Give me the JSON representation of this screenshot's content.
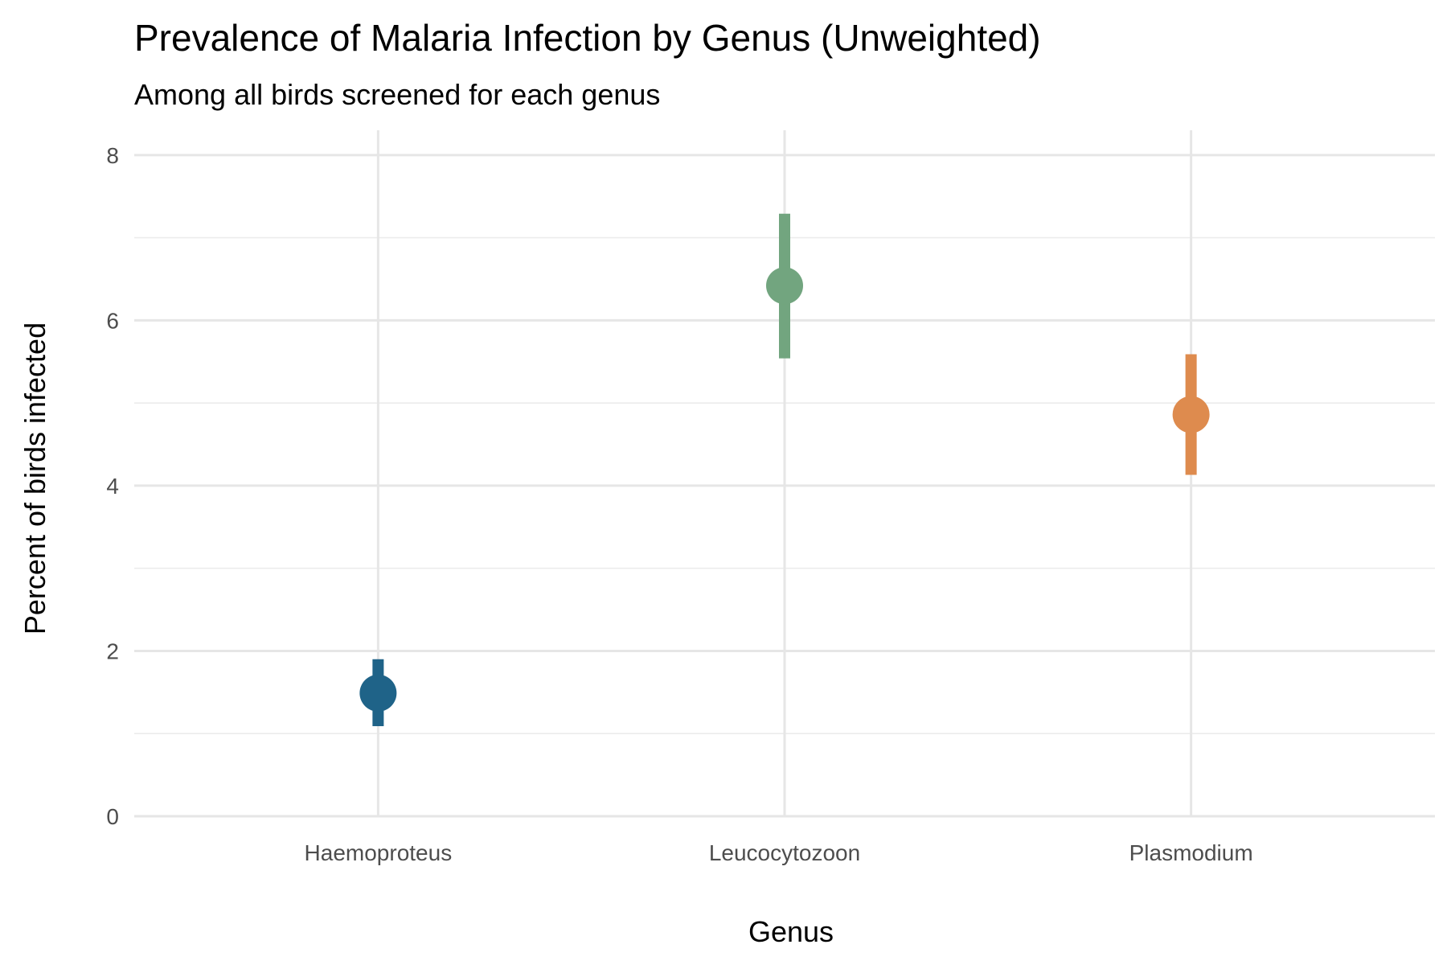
{
  "chart_data": {
    "type": "scatter",
    "title": "Prevalence of Malaria Infection by Genus (Unweighted)",
    "subtitle": "Among all birds screened for each genus",
    "xlabel": "Genus",
    "ylabel": "Percent of birds infected",
    "categories": [
      "Haemoproteus",
      "Leucocytozoon",
      "Plasmodium"
    ],
    "ylim": [
      0,
      8.3
    ],
    "yticks": [
      0,
      2,
      4,
      6,
      8
    ],
    "grid": true,
    "legend": "none",
    "series": [
      {
        "values": [
          1.49,
          6.42,
          4.86
        ],
        "lower": [
          1.09,
          5.54,
          4.13
        ],
        "upper": [
          1.9,
          7.29,
          5.59
        ],
        "colors": [
          "#1f6388",
          "#72a57f",
          "#de8b4e"
        ]
      }
    ]
  }
}
